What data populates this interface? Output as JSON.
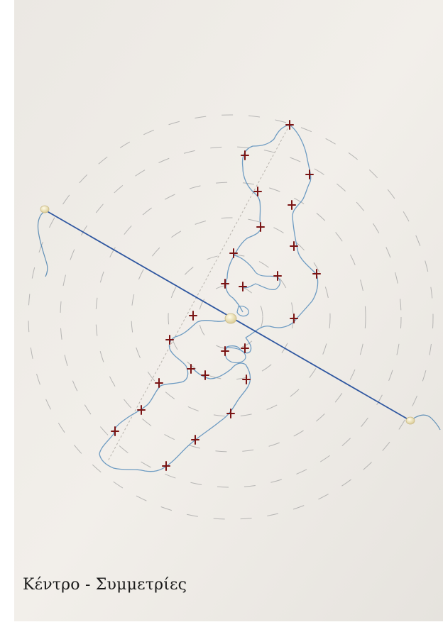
{
  "caption": "Κέντρο - Συμμετρίες",
  "colors": {
    "paper": "#efece7",
    "thread": "#5f8fb6",
    "axis_thread": "#2f57a0",
    "cross": "#7a1414",
    "pencil": "#9a9a9a",
    "pin": "#f1e6c0"
  }
}
